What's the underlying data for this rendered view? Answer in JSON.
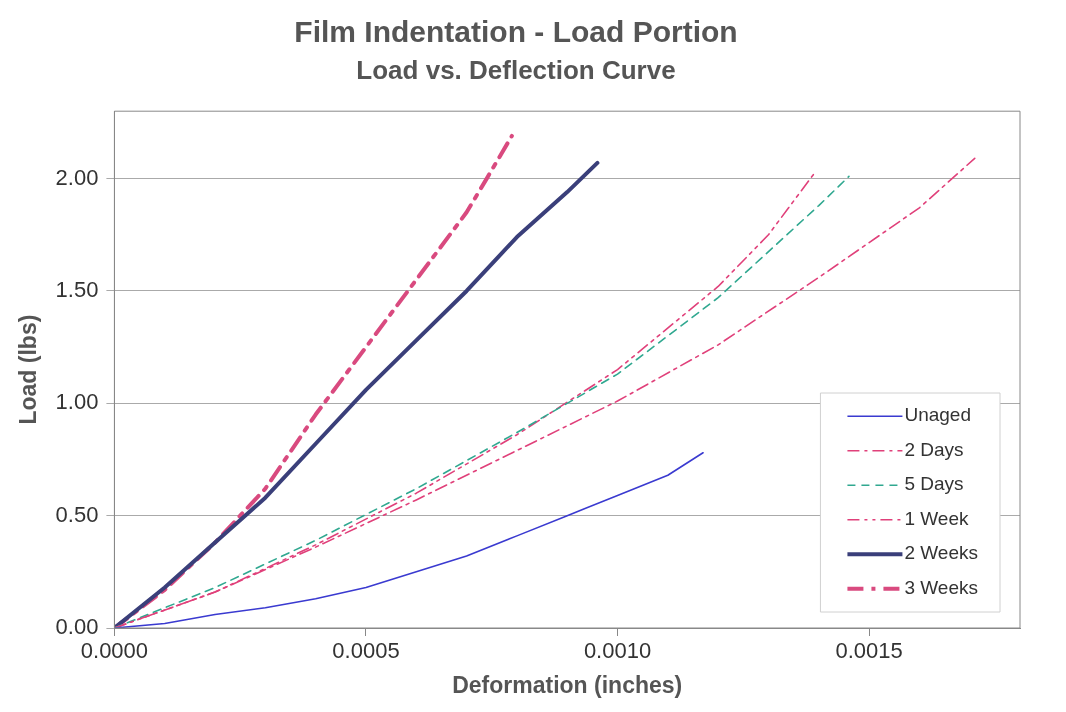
{
  "chart_data": {
    "type": "line",
    "title": "Film Indentation - Load Portion",
    "subtitle": "Load vs. Deflection Curve",
    "xlabel": "Deformation (inches)",
    "ylabel": "Load (lbs)",
    "xlim": [
      0,
      0.0018
    ],
    "xticks": [
      {
        "value": 0,
        "label": "0.0000"
      },
      {
        "value": 0.0005,
        "label": "0.0005"
      },
      {
        "value": 0.001,
        "label": "0.0010"
      },
      {
        "value": 0.0015,
        "label": "0.0015"
      }
    ],
    "ylim": [
      0,
      2.3
    ],
    "yticks": [
      {
        "value": 0,
        "label": "0.00"
      },
      {
        "value": 0.5,
        "label": "0.50"
      },
      {
        "value": 1,
        "label": "1.00"
      },
      {
        "value": 1.5,
        "label": "1.50"
      },
      {
        "value": 2,
        "label": "2.00"
      }
    ],
    "grid": "y",
    "legend": "bottom right",
    "marker": "none",
    "series": [
      {
        "name": "Unaged",
        "color": "#3a3ad0",
        "line_style": "solid",
        "x": [
          0,
          0.0001,
          0.0002,
          0.0003,
          0.0004,
          0.0005,
          0.0006,
          0.0007,
          0.0008,
          0.0009,
          0.001,
          0.0011,
          0.00117
        ],
        "values": [
          0,
          0.02,
          0.06,
          0.09,
          0.13,
          0.18,
          0.25,
          0.32,
          0.41,
          0.5,
          0.59,
          0.68,
          0.78
        ]
      },
      {
        "name": "2 Days",
        "color": "#e0407a",
        "line_style": "dashed",
        "x": [
          0,
          0.0002,
          0.0004,
          0.0006,
          0.0008,
          0.001,
          0.0012,
          0.0014,
          0.0016,
          0.00171
        ],
        "values": [
          0,
          0.16,
          0.36,
          0.57,
          0.79,
          1.01,
          1.26,
          1.56,
          1.87,
          2.09
        ]
      },
      {
        "name": "5 Days",
        "color": "#30a890",
        "line_style": "dashed",
        "x": [
          0,
          0.0002,
          0.0004,
          0.0006,
          0.0008,
          0.001,
          0.0012,
          0.0014,
          0.00146
        ],
        "values": [
          0,
          0.18,
          0.39,
          0.62,
          0.87,
          1.13,
          1.47,
          1.88,
          2.01
        ]
      },
      {
        "name": "1 Week",
        "color": "#e0407a",
        "line_style": "dashed",
        "x": [
          0,
          0.0002,
          0.0004,
          0.0006,
          0.0008,
          0.001,
          0.0012,
          0.0013,
          0.00139
        ],
        "values": [
          0,
          0.16,
          0.37,
          0.6,
          0.86,
          1.15,
          1.52,
          1.75,
          2.02
        ]
      },
      {
        "name": "2 Weeks",
        "color": "#3a3f7a",
        "line_style": "solid",
        "x": [
          0,
          0.0001,
          0.0002,
          0.0003,
          0.0004,
          0.0005,
          0.0006,
          0.0007,
          0.0008,
          0.0009,
          0.00096
        ],
        "values": [
          0,
          0.18,
          0.38,
          0.58,
          0.82,
          1.06,
          1.28,
          1.5,
          1.74,
          1.94,
          2.07
        ]
      },
      {
        "name": "3 Weeks",
        "color": "#d94a7f",
        "line_style": "dashed",
        "x": [
          0,
          0.0001,
          0.0002,
          0.0003,
          0.0004,
          0.0005,
          0.0006,
          0.0007,
          0.00074,
          0.00079
        ],
        "values": [
          0,
          0.17,
          0.38,
          0.62,
          0.95,
          1.25,
          1.55,
          1.85,
          2.0,
          2.19
        ]
      }
    ]
  }
}
